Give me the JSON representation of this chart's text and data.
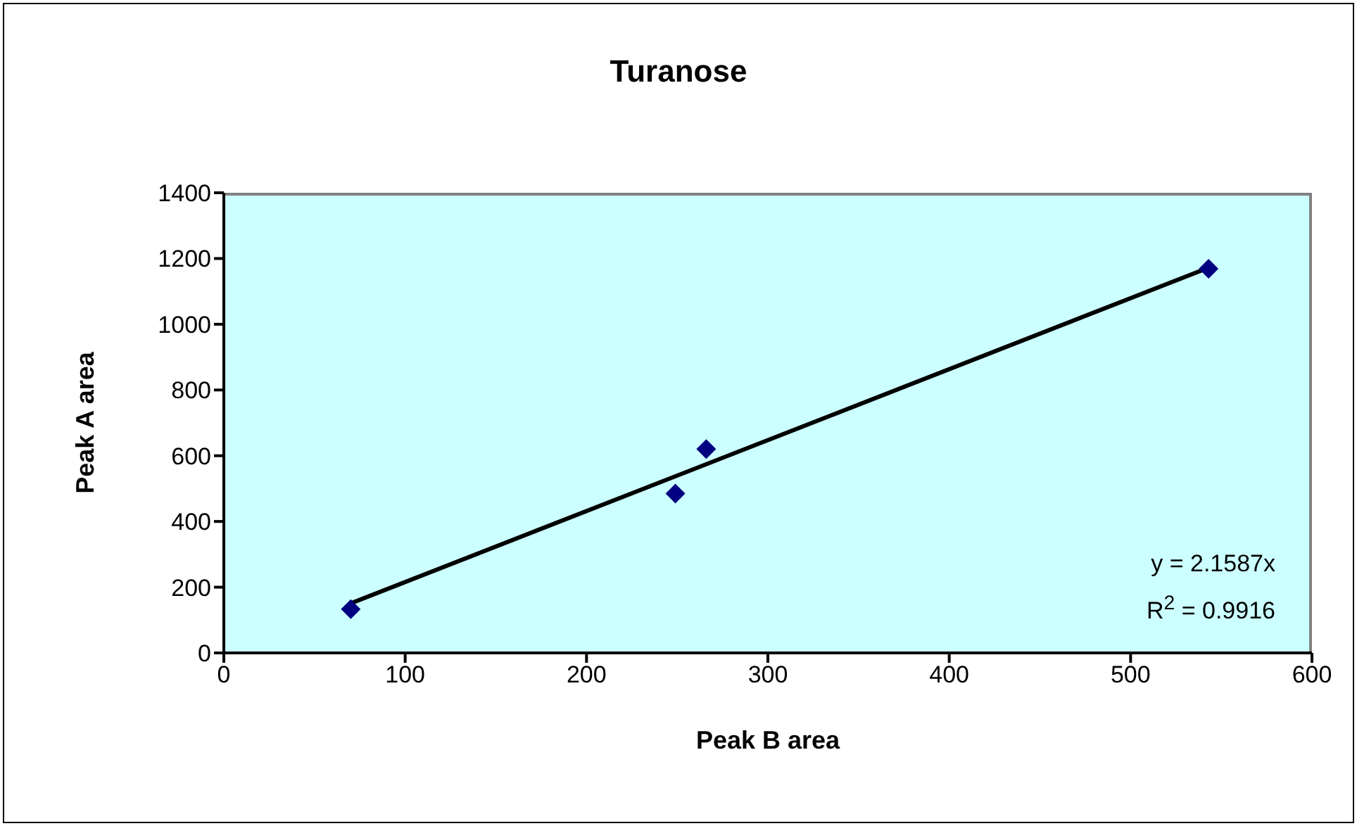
{
  "chart_data": {
    "type": "scatter",
    "title": "Turanose",
    "xlabel": "Peak B area",
    "ylabel": "Peak A area",
    "series": [
      {
        "color": "#000080",
        "marker": "diamond",
        "x": [
          70,
          249,
          266,
          543
        ],
        "values": [
          133,
          485,
          620,
          1169
        ]
      },
      {
        "type": "line",
        "color": "#000000",
        "marker": "none",
        "x": [
          70,
          543
        ],
        "values": [
          151,
          1172
        ]
      }
    ],
    "xlim": [
      0,
      600
    ],
    "xticks": [
      0,
      100,
      200,
      300,
      400,
      500,
      600
    ],
    "ylim": [
      0,
      1400
    ],
    "yticks": [
      0,
      200,
      400,
      600,
      800,
      1000,
      1200,
      1400
    ],
    "grid": false,
    "annotations": [
      "y = 2.1587x",
      "R$^{2}$ = 0.9916"
    ]
  }
}
